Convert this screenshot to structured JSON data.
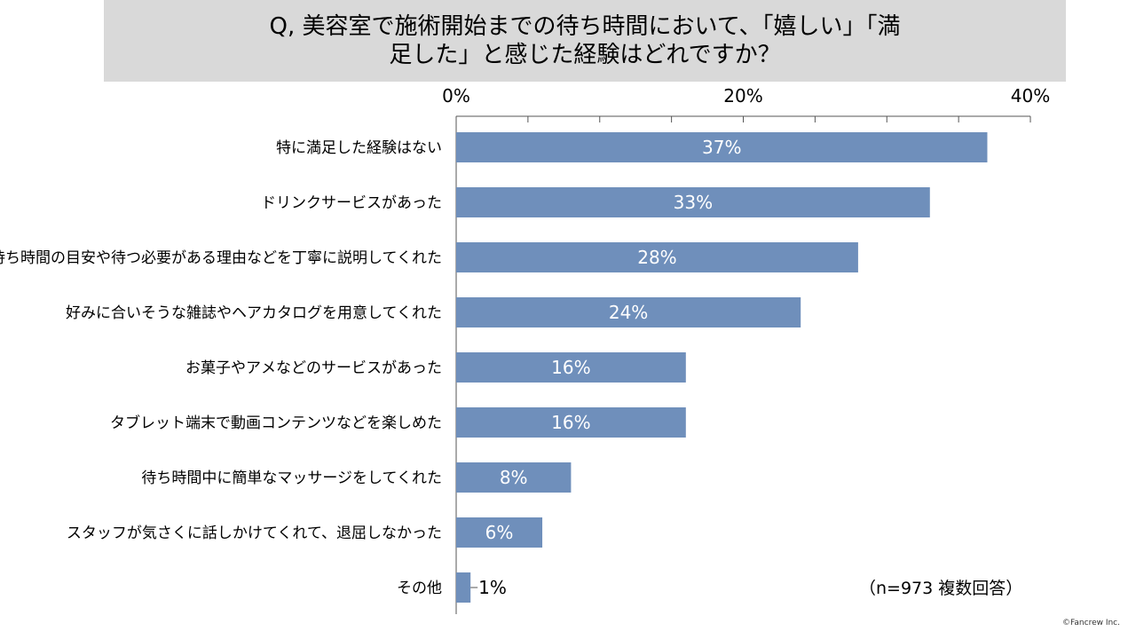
{
  "title": "Q, 美容室で施術開始までの待ち時間において、「嬉しい」「満足した」と感じた経験はどれですか？",
  "note": "（n=973 複数回答）",
  "copyright": "©Fancrew Inc.",
  "colors": {
    "bar": "#6f8fbb",
    "title_bg": "#d9d9d9"
  },
  "chart_data": {
    "type": "bar",
    "orientation": "horizontal",
    "categories": [
      "特に満足した経験はない",
      "ドリンクサービスがあった",
      "待ち時間の目安や待つ必要がある理由などを丁寧に説明してくれた",
      "好みに合いそうな雑誌やヘアカタログを用意してくれた",
      "お菓子やアメなどのサービスがあった",
      "タブレット端末で動画コンテンツなどを楽しめた",
      "待ち時間中に簡単なマッサージをしてくれた",
      "スタッフが気さくに話しかけてくれて、退屈しなかった",
      "その他"
    ],
    "values": [
      37,
      33,
      28,
      24,
      16,
      16,
      8,
      6,
      1
    ],
    "value_labels": [
      "37%",
      "33%",
      "28%",
      "24%",
      "16%",
      "16%",
      "8%",
      "6%",
      "1%"
    ],
    "xlim": [
      0,
      40
    ],
    "tick_labels": [
      "0%",
      "20%",
      "40%"
    ],
    "tick_values": [
      0,
      20,
      40
    ],
    "minor_tick_values": [
      5,
      10,
      15,
      25,
      30,
      35
    ]
  }
}
